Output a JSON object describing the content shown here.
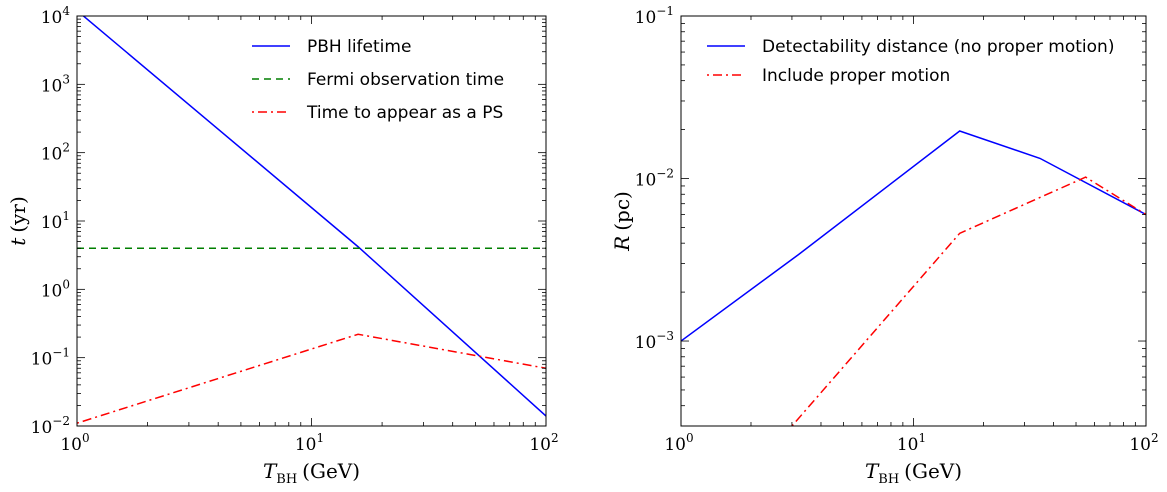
{
  "chart_data": [
    {
      "type": "line",
      "xlabel_main": "T",
      "xlabel_sub": "BH",
      "xlabel_unit": "(GeV)",
      "ylabel_main": "t",
      "ylabel_unit": "(yr)",
      "xscale": "log",
      "yscale": "log",
      "xlim": [
        1,
        100
      ],
      "ylim": [
        0.01,
        10000
      ],
      "grid": false,
      "legend_position": "top-right",
      "x_ticks": [
        {
          "value": 1,
          "base": "10",
          "exp": "0"
        },
        {
          "value": 10,
          "base": "10",
          "exp": "1"
        },
        {
          "value": 100,
          "base": "10",
          "exp": "2"
        }
      ],
      "y_ticks": [
        {
          "value": 0.01,
          "base": "10",
          "exp": "−2"
        },
        {
          "value": 0.1,
          "base": "10",
          "exp": "−1"
        },
        {
          "value": 1,
          "base": "10",
          "exp": "0"
        },
        {
          "value": 10,
          "base": "10",
          "exp": "1"
        },
        {
          "value": 100,
          "base": "10",
          "exp": "2"
        },
        {
          "value": 1000,
          "base": "10",
          "exp": "3"
        },
        {
          "value": 10000,
          "base": "10",
          "exp": "4"
        }
      ],
      "series": [
        {
          "name": "PBH lifetime",
          "color": "#0000ff",
          "style": "solid",
          "x": [
            1,
            15.8,
            100
          ],
          "y": [
            12000,
            4.2,
            0.014
          ]
        },
        {
          "name": "Fermi observation time",
          "color": "#007f00",
          "style": "dashed",
          "x": [
            1,
            100
          ],
          "y": [
            4,
            4
          ]
        },
        {
          "name": "Time to appear as a PS",
          "color": "#ff0000",
          "style": "dashdot",
          "x": [
            1,
            15.8,
            100
          ],
          "y": [
            0.011,
            0.22,
            0.07
          ]
        }
      ]
    },
    {
      "type": "line",
      "xlabel_main": "T",
      "xlabel_sub": "BH",
      "xlabel_unit": "(GeV)",
      "ylabel_main": "R",
      "ylabel_unit": "(pc)",
      "xscale": "log",
      "yscale": "log",
      "xlim": [
        1,
        100
      ],
      "ylim": [
        0.0003,
        0.1
      ],
      "grid": false,
      "legend_position": "top-right",
      "x_ticks": [
        {
          "value": 1,
          "base": "10",
          "exp": "0"
        },
        {
          "value": 10,
          "base": "10",
          "exp": "1"
        },
        {
          "value": 100,
          "base": "10",
          "exp": "2"
        }
      ],
      "y_ticks": [
        {
          "value": 0.001,
          "base": "10",
          "exp": "−3"
        },
        {
          "value": 0.01,
          "base": "10",
          "exp": "−2"
        },
        {
          "value": 0.1,
          "base": "10",
          "exp": "−1"
        }
      ],
      "series": [
        {
          "name": "Detectability distance (no proper motion)",
          "color": "#0000ff",
          "style": "solid",
          "x": [
            1,
            3.2,
            15.8,
            35,
            100
          ],
          "y": [
            0.001,
            0.0034,
            0.0196,
            0.0133,
            0.006
          ]
        },
        {
          "name": "Include proper motion",
          "color": "#ff0000",
          "style": "dashdot",
          "x": [
            3.0,
            15.8,
            55,
            100
          ],
          "y": [
            0.0003,
            0.0046,
            0.0102,
            0.006
          ]
        }
      ]
    }
  ]
}
